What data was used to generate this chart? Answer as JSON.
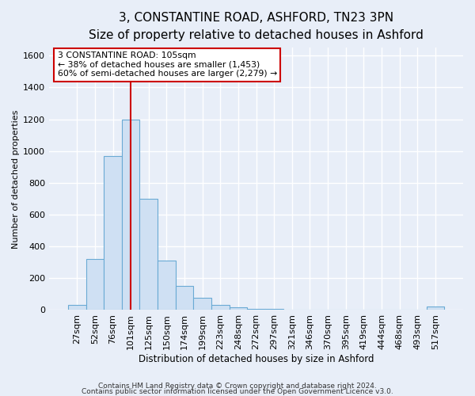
{
  "title": "3, CONSTANTINE ROAD, ASHFORD, TN23 3PN",
  "subtitle": "Size of property relative to detached houses in Ashford",
  "xlabel": "Distribution of detached houses by size in Ashford",
  "ylabel": "Number of detached properties",
  "bar_labels": [
    "27sqm",
    "52sqm",
    "76sqm",
    "101sqm",
    "125sqm",
    "150sqm",
    "174sqm",
    "199sqm",
    "223sqm",
    "248sqm",
    "272sqm",
    "297sqm",
    "321sqm",
    "346sqm",
    "370sqm",
    "395sqm",
    "419sqm",
    "444sqm",
    "468sqm",
    "493sqm",
    "517sqm"
  ],
  "bar_values": [
    30,
    320,
    970,
    1200,
    700,
    310,
    150,
    75,
    30,
    15,
    5,
    5,
    3,
    3,
    3,
    3,
    3,
    3,
    3,
    3,
    20
  ],
  "bar_color": "#cfe0f3",
  "bar_edgecolor": "#6aaad4",
  "ylim": [
    0,
    1650
  ],
  "yticks": [
    0,
    200,
    400,
    600,
    800,
    1000,
    1200,
    1400,
    1600
  ],
  "vline_color": "#cc0000",
  "annotation_title": "3 CONSTANTINE ROAD: 105sqm",
  "annotation_line1": "← 38% of detached houses are smaller (1,453)",
  "annotation_line2": "60% of semi-detached houses are larger (2,279) →",
  "annotation_box_color": "#ffffff",
  "annotation_box_edgecolor": "#cc0000",
  "footer1": "Contains HM Land Registry data © Crown copyright and database right 2024.",
  "footer2": "Contains public sector information licensed under the Open Government Licence v3.0.",
  "background_color": "#e8eef8",
  "grid_color": "#ffffff",
  "title_fontsize": 11,
  "subtitle_fontsize": 9.5,
  "axis_fontsize": 8,
  "footer_fontsize": 6.5
}
